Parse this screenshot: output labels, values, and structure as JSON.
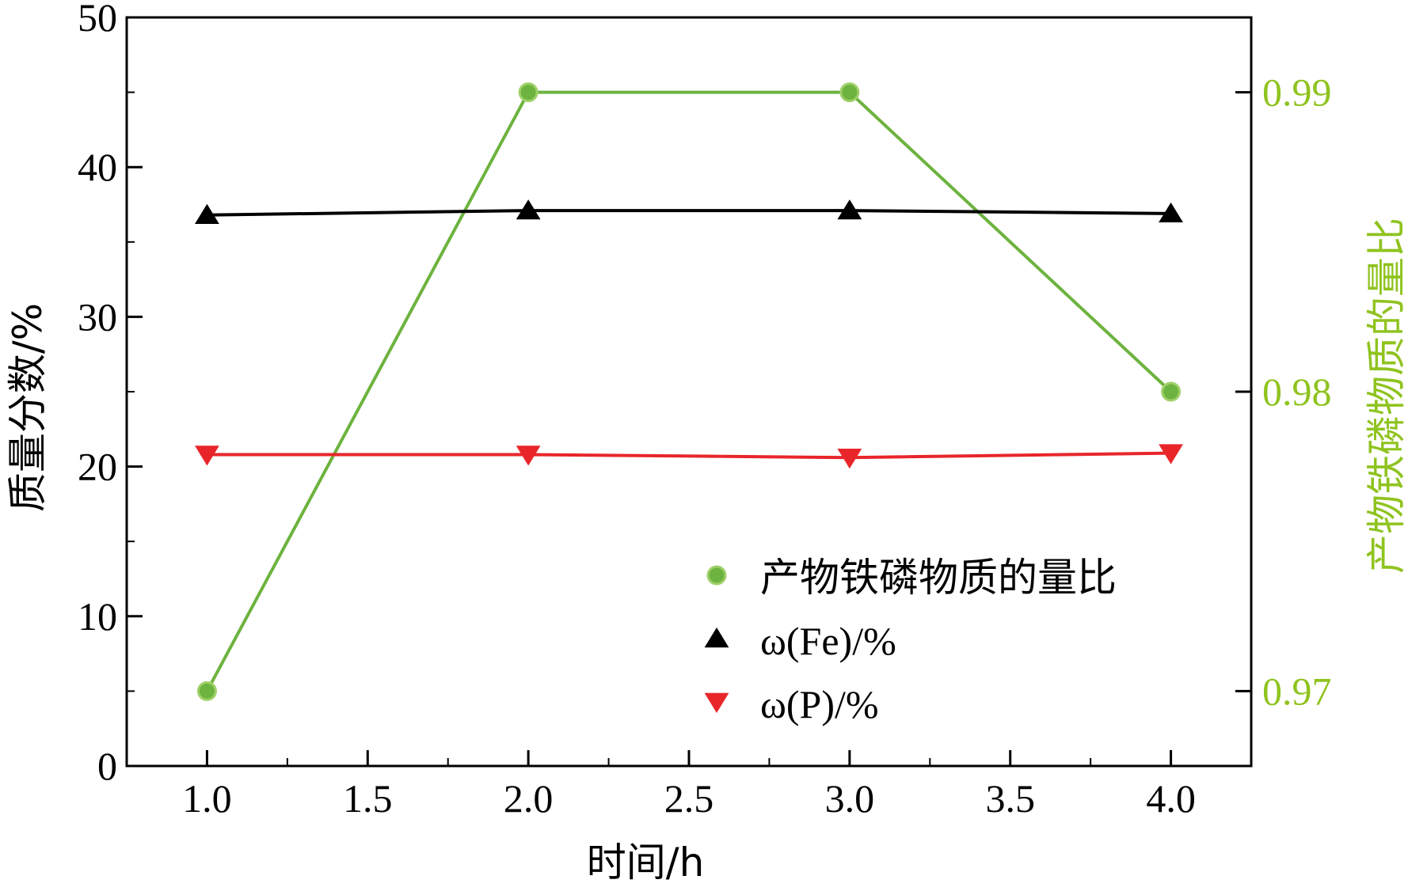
{
  "chart_data": {
    "type": "line",
    "title": "",
    "xlabel": "时间/h",
    "ylabel": "质量分数/%",
    "y2label": "产物铁磷物质的量比",
    "xlim": [
      0.75,
      4.25
    ],
    "ylim": [
      0,
      50
    ],
    "y2lim": [
      0.9675,
      0.9925
    ],
    "xticks": [
      1.0,
      1.5,
      2.0,
      2.5,
      3.0,
      3.5,
      4.0
    ],
    "xtick_labels": [
      "1.0",
      "1.5",
      "2.0",
      "2.5",
      "3.0",
      "3.5",
      "4.0"
    ],
    "yticks": [
      0,
      10,
      20,
      30,
      40,
      50
    ],
    "ytick_labels": [
      "0",
      "10",
      "20",
      "30",
      "40",
      "50"
    ],
    "y2ticks": [
      0.97,
      0.98,
      0.99
    ],
    "y2tick_labels": [
      "0.97",
      "0.98",
      "0.99"
    ],
    "grid": false,
    "legend_position": "bottom-right",
    "x": [
      1.0,
      2.0,
      3.0,
      4.0
    ],
    "series": [
      {
        "name": "产物铁磷物质的量比",
        "axis": "right",
        "marker": "circle",
        "color": "#6db33f",
        "values": [
          0.97,
          0.99,
          0.99,
          0.98
        ]
      },
      {
        "name": "ω(Fe)/%",
        "axis": "left",
        "marker": "triangle-up",
        "color": "#000000",
        "values": [
          36.8,
          37.1,
          37.1,
          36.9
        ]
      },
      {
        "name": "ω(P)/%",
        "axis": "left",
        "marker": "triangle-down",
        "color": "#e8262a",
        "values": [
          20.8,
          20.8,
          20.6,
          20.9
        ]
      }
    ],
    "colors": {
      "axis": "#000000",
      "right_axis": "#8fc31f"
    }
  }
}
